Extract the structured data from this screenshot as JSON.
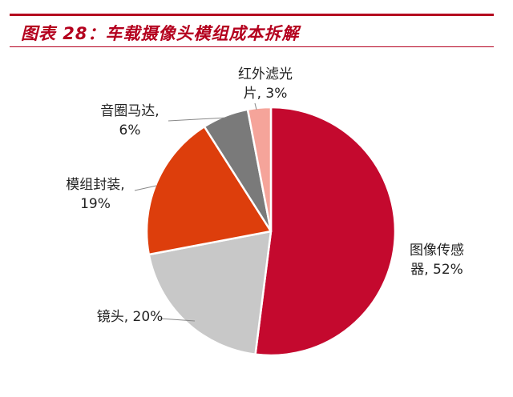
{
  "figure_title": "图表 28：车载摄像头模组成本拆解",
  "colors": {
    "title": "#b4001e",
    "rule": "#b4001e",
    "leader": "#888888"
  },
  "chart_data": {
    "type": "pie",
    "title": "",
    "start_angle_deg": 0,
    "direction": "clockwise",
    "slices": [
      {
        "name": "图像传感器",
        "value": 52,
        "value_label": "52%",
        "label_lines": [
          "图像传感",
          "器, 52%"
        ],
        "color": "#c4092e"
      },
      {
        "name": "镜头",
        "value": 20,
        "value_label": "20%",
        "label_lines": [
          "镜头, 20%"
        ],
        "color": "#c8c8c8"
      },
      {
        "name": "模组封装",
        "value": 19,
        "value_label": "19%",
        "label_lines": [
          "模组封装,",
          "19%"
        ],
        "color": "#dd3e0c"
      },
      {
        "name": "音圈马达",
        "value": 6,
        "value_label": "6%",
        "label_lines": [
          "音圈马达,",
          "6%"
        ],
        "color": "#7a7a7a"
      },
      {
        "name": "红外滤光片",
        "value": 3,
        "value_label": "3%",
        "label_lines": [
          "红外滤光",
          "片, 3%"
        ],
        "color": "#f5a49a"
      }
    ]
  }
}
